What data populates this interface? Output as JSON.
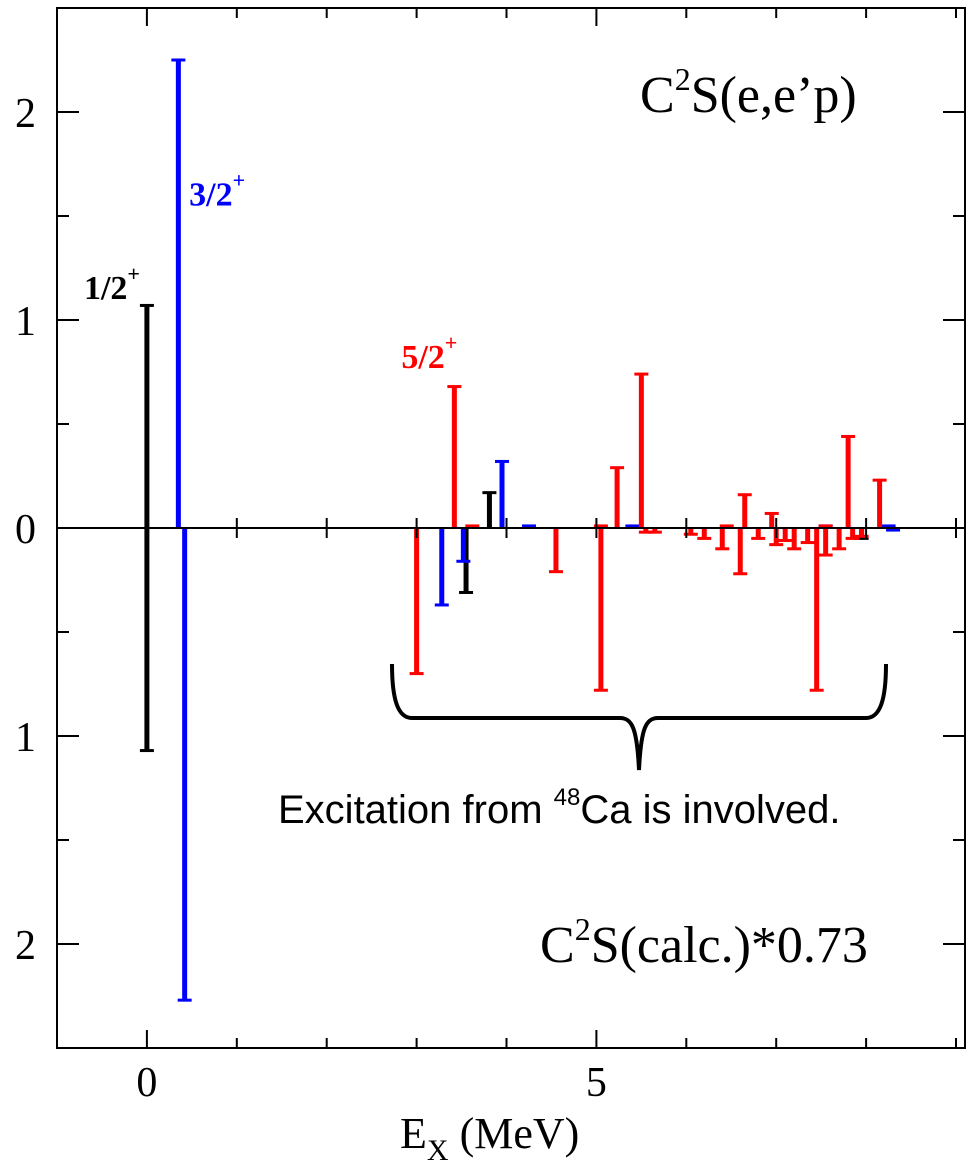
{
  "chart_data": {
    "type": "bar",
    "xlabel_main": "E",
    "xlabel_sub": "X",
    "xlabel_unit": " (MeV)",
    "xlim": [
      -1,
      9.1
    ],
    "ylim": [
      -2.5,
      2.5
    ],
    "x_ticks": [
      {
        "v": 0,
        "label": "0"
      },
      {
        "v": 5,
        "label": "5"
      }
    ],
    "y_ticks": [
      {
        "v": 2,
        "label": "2"
      },
      {
        "v": 1,
        "label": "1"
      },
      {
        "v": 0,
        "label": "0"
      },
      {
        "v": -1,
        "label": "1"
      },
      {
        "v": -2,
        "label": "2"
      }
    ],
    "upper_title": {
      "main": "C",
      "sup": "2",
      "rest": "S(e,e’p)"
    },
    "lower_title": {
      "main": "C",
      "sup": "2",
      "rest": "S(calc.)*0.73"
    },
    "annotation": {
      "pre": "Excitation from ",
      "sup": "48",
      "post": "Ca is involved."
    },
    "state_labels": [
      {
        "text": "1/2",
        "sup": "+",
        "color": "#000000",
        "x": -0.7,
        "y": 1.1
      },
      {
        "text": "3/2",
        "sup": "+",
        "color": "#0000ff",
        "x": 0.47,
        "y": 1.55
      },
      {
        "text": "5/2",
        "sup": "+",
        "color": "#ff0000",
        "x": 2.83,
        "y": 0.77
      }
    ],
    "colors": {
      "1/2+": "#000000",
      "3/2+": "#0000ff",
      "5/2+": "#ff0000"
    },
    "series": [
      {
        "name": "1/2+",
        "color": "#000000",
        "panel": "exp",
        "points": [
          {
            "x": 0.0,
            "y": 1.07
          },
          {
            "x": 3.81,
            "y": 0.17
          }
        ]
      },
      {
        "name": "1/2+",
        "color": "#000000",
        "panel": "calc",
        "points": [
          {
            "x": 0.0,
            "y": -1.07
          },
          {
            "x": 3.55,
            "y": -0.31
          },
          {
            "x": 7.95,
            "y": -0.05
          }
        ]
      },
      {
        "name": "3/2+",
        "color": "#0000ff",
        "panel": "exp",
        "points": [
          {
            "x": 0.35,
            "y": 2.25
          },
          {
            "x": 3.95,
            "y": 0.32
          },
          {
            "x": 4.25,
            "y": 0.01
          },
          {
            "x": 5.4,
            "y": 0.01
          },
          {
            "x": 7.55,
            "y": 0.01
          },
          {
            "x": 8.25,
            "y": 0.01
          }
        ]
      },
      {
        "name": "3/2+",
        "color": "#0000ff",
        "panel": "calc",
        "points": [
          {
            "x": 0.42,
            "y": -2.27
          },
          {
            "x": 3.28,
            "y": -0.37
          },
          {
            "x": 3.52,
            "y": -0.16
          },
          {
            "x": 8.3,
            "y": -0.01
          }
        ]
      },
      {
        "name": "5/2+",
        "color": "#ff0000",
        "panel": "exp",
        "points": [
          {
            "x": 3.42,
            "y": 0.68
          },
          {
            "x": 3.62,
            "y": 0.01
          },
          {
            "x": 5.05,
            "y": 0.01
          },
          {
            "x": 5.23,
            "y": 0.29
          },
          {
            "x": 5.5,
            "y": 0.74
          },
          {
            "x": 6.45,
            "y": 0.01
          },
          {
            "x": 6.65,
            "y": 0.16
          },
          {
            "x": 6.95,
            "y": 0.07
          },
          {
            "x": 7.55,
            "y": 0.01
          },
          {
            "x": 7.8,
            "y": 0.44
          },
          {
            "x": 8.15,
            "y": 0.23
          }
        ]
      },
      {
        "name": "5/2+",
        "color": "#ff0000",
        "panel": "calc",
        "points": [
          {
            "x": 3.0,
            "y": -0.7
          },
          {
            "x": 4.55,
            "y": -0.21
          },
          {
            "x": 5.05,
            "y": -0.78
          },
          {
            "x": 5.55,
            "y": -0.02
          },
          {
            "x": 5.65,
            "y": -0.02
          },
          {
            "x": 6.05,
            "y": -0.03
          },
          {
            "x": 6.2,
            "y": -0.05
          },
          {
            "x": 6.4,
            "y": -0.1
          },
          {
            "x": 6.6,
            "y": -0.22
          },
          {
            "x": 6.8,
            "y": -0.05
          },
          {
            "x": 7.0,
            "y": -0.08
          },
          {
            "x": 7.1,
            "y": -0.06
          },
          {
            "x": 7.2,
            "y": -0.1
          },
          {
            "x": 7.35,
            "y": -0.07
          },
          {
            "x": 7.45,
            "y": -0.78
          },
          {
            "x": 7.55,
            "y": -0.13
          },
          {
            "x": 7.7,
            "y": -0.1
          },
          {
            "x": 7.85,
            "y": -0.05
          },
          {
            "x": 7.95,
            "y": -0.04
          }
        ]
      }
    ]
  }
}
